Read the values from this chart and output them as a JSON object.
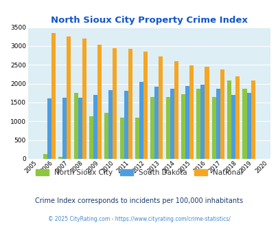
{
  "title": "North Sioux City Property Crime Index",
  "plot_years": [
    2006,
    2007,
    2008,
    2009,
    2010,
    2011,
    2012,
    2013,
    2014,
    2015,
    2016,
    2017,
    2018,
    2019
  ],
  "xtick_years": [
    2005,
    2006,
    2007,
    2008,
    2009,
    2010,
    2011,
    2012,
    2013,
    2014,
    2015,
    2016,
    2017,
    2018,
    2019,
    2020
  ],
  "north_sioux_city": [
    130,
    50,
    1750,
    1140,
    1220,
    1100,
    1100,
    1640,
    1640,
    1720,
    1860,
    1640,
    2080,
    1860
  ],
  "south_dakota": [
    1610,
    1630,
    1630,
    1700,
    1820,
    1810,
    2050,
    1920,
    1870,
    1940,
    1970,
    1870,
    1700,
    1760
  ],
  "national": [
    3340,
    3250,
    3200,
    3040,
    2950,
    2920,
    2860,
    2730,
    2600,
    2490,
    2450,
    2370,
    2200,
    2090
  ],
  "bar_color_nsc": "#8dc63f",
  "bar_color_sd": "#4d9de0",
  "bar_color_nat": "#f5a623",
  "ylim": [
    0,
    3500
  ],
  "yticks": [
    0,
    500,
    1000,
    1500,
    2000,
    2500,
    3000,
    3500
  ],
  "plot_bg": "#ddeef5",
  "title_color": "#1155cc",
  "legend_labels": [
    "North Sioux City",
    "South Dakota",
    "National"
  ],
  "subtitle": "Crime Index corresponds to incidents per 100,000 inhabitants",
  "subtitle_color": "#1a3a6e",
  "footer": "© 2025 CityRating.com - https://www.cityrating.com/crime-statistics/",
  "footer_color": "#4488cc",
  "grid_color": "#ffffff",
  "bar_width": 0.27
}
